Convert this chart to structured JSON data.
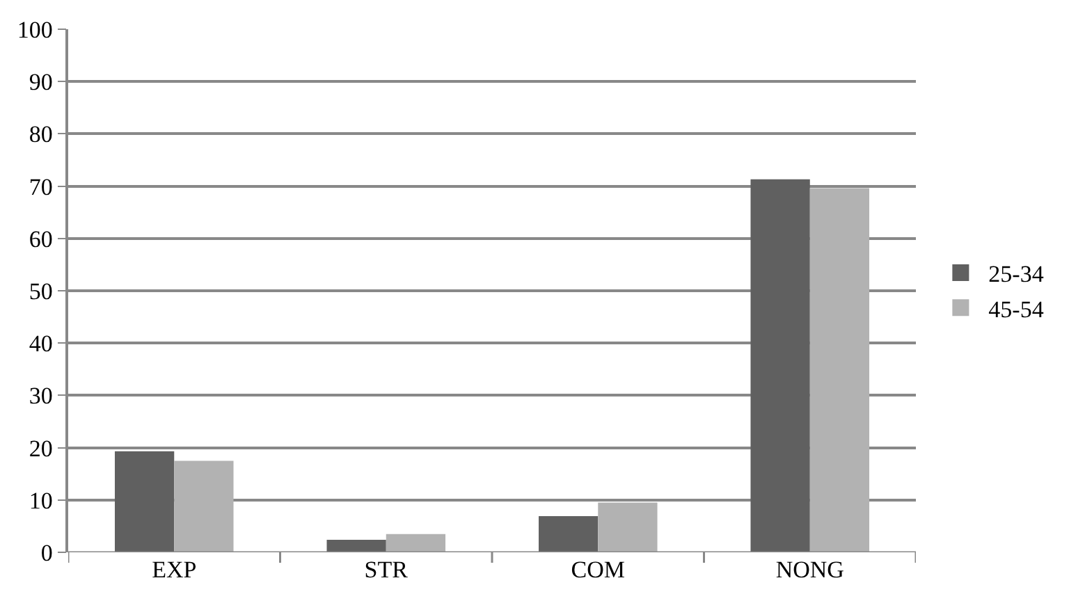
{
  "chart_data": {
    "type": "bar",
    "categories": [
      "EXP",
      "STR",
      "COM",
      "NONG"
    ],
    "series": [
      {
        "name": "25-34",
        "color": "#606060",
        "values": [
          19.3,
          2.4,
          6.9,
          71.3
        ]
      },
      {
        "name": "45-54",
        "color": "#b2b2b2",
        "values": [
          17.5,
          3.5,
          9.5,
          69.6
        ]
      }
    ],
    "ylim": [
      0,
      100
    ],
    "yticks": [
      0,
      10,
      20,
      30,
      40,
      50,
      60,
      70,
      80,
      90,
      100
    ],
    "grid": "y",
    "legend": "right"
  }
}
